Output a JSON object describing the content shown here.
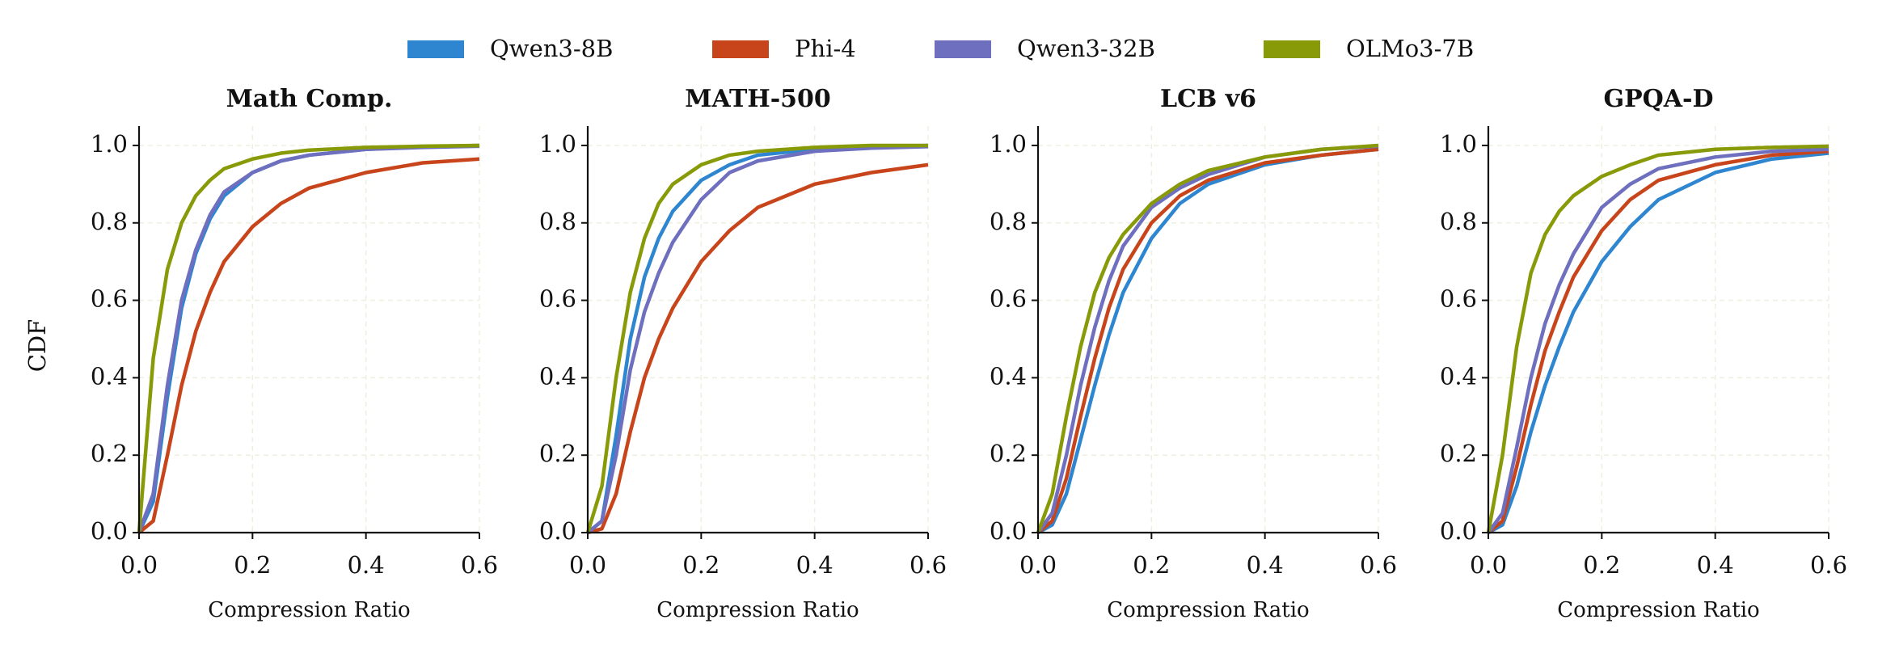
{
  "chart_data": [
    {
      "type": "line",
      "title": "Math Comp.",
      "xlabel": "Compression Ratio",
      "ylabel": "CDF",
      "legend": "top-center",
      "grid": true,
      "xlim": [
        0,
        0.6
      ],
      "ylim": [
        0,
        1.05
      ],
      "xticks": [
        {
          "value": 0,
          "label": "0.0"
        },
        0.2,
        0.4,
        0.6
      ],
      "yticks": [
        {
          "value": 0,
          "label": "0.0"
        },
        0.2,
        0.4,
        0.6,
        0.8,
        {
          "value": 1,
          "label": "1.0"
        }
      ],
      "x": [
        0,
        0.025,
        0.05,
        0.075,
        0.1,
        0.125,
        0.15,
        0.2,
        0.25,
        0.3,
        0.4,
        0.5,
        0.6
      ],
      "series": [
        {
          "name": "Qwen3-8B",
          "color": "#2e86d0",
          "values": [
            0,
            0.08,
            0.35,
            0.58,
            0.72,
            0.81,
            0.87,
            0.93,
            0.96,
            0.975,
            0.99,
            0.997,
            1.0
          ]
        },
        {
          "name": "Phi-4",
          "color": "#c8451c",
          "values": [
            0,
            0.03,
            0.2,
            0.38,
            0.52,
            0.62,
            0.7,
            0.79,
            0.85,
            0.89,
            0.93,
            0.955,
            0.965
          ]
        },
        {
          "name": "Qwen3-32B",
          "color": "#6f6fbf",
          "values": [
            0,
            0.1,
            0.38,
            0.6,
            0.73,
            0.82,
            0.88,
            0.93,
            0.96,
            0.975,
            0.99,
            0.995,
            0.998
          ]
        },
        {
          "name": "OLMo3-7B",
          "color": "#889a08",
          "values": [
            0,
            0.45,
            0.68,
            0.8,
            0.87,
            0.91,
            0.94,
            0.965,
            0.98,
            0.988,
            0.995,
            0.998,
            1.0
          ]
        }
      ]
    },
    {
      "type": "line",
      "title": "MATH-500",
      "xlabel": "Compression Ratio",
      "grid": true,
      "xlim": [
        0,
        0.6
      ],
      "ylim": [
        0,
        1.05
      ],
      "xticks": [
        {
          "value": 0,
          "label": "0.0"
        },
        0.2,
        0.4,
        0.6
      ],
      "yticks": [
        {
          "value": 0,
          "label": "0.0"
        },
        0.2,
        0.4,
        0.6,
        0.8,
        {
          "value": 1,
          "label": "1.0"
        }
      ],
      "x": [
        0,
        0.025,
        0.05,
        0.075,
        0.1,
        0.125,
        0.15,
        0.2,
        0.25,
        0.3,
        0.4,
        0.5,
        0.6
      ],
      "series": [
        {
          "name": "Qwen3-8B",
          "color": "#2e86d0",
          "values": [
            0,
            0.03,
            0.25,
            0.5,
            0.66,
            0.76,
            0.83,
            0.91,
            0.95,
            0.975,
            0.99,
            0.995,
            1.0
          ]
        },
        {
          "name": "Phi-4",
          "color": "#c8451c",
          "values": [
            0,
            0.01,
            0.1,
            0.26,
            0.4,
            0.5,
            0.58,
            0.7,
            0.78,
            0.84,
            0.9,
            0.93,
            0.95
          ]
        },
        {
          "name": "Qwen3-32B",
          "color": "#6f6fbf",
          "values": [
            0,
            0.03,
            0.2,
            0.42,
            0.57,
            0.67,
            0.75,
            0.86,
            0.93,
            0.96,
            0.985,
            0.993,
            0.997
          ]
        },
        {
          "name": "OLMo3-7B",
          "color": "#889a08",
          "values": [
            0,
            0.12,
            0.4,
            0.62,
            0.76,
            0.85,
            0.9,
            0.95,
            0.975,
            0.985,
            0.995,
            1.0,
            1.0
          ]
        }
      ]
    },
    {
      "type": "line",
      "title": "LCB v6",
      "xlabel": "Compression Ratio",
      "grid": true,
      "xlim": [
        0,
        0.6
      ],
      "ylim": [
        0,
        1.05
      ],
      "xticks": [
        {
          "value": 0,
          "label": "0.0"
        },
        0.2,
        0.4,
        0.6
      ],
      "yticks": [
        {
          "value": 0,
          "label": "0.0"
        },
        0.2,
        0.4,
        0.6,
        0.8,
        {
          "value": 1,
          "label": "1.0"
        }
      ],
      "x": [
        0,
        0.025,
        0.05,
        0.075,
        0.1,
        0.125,
        0.15,
        0.2,
        0.25,
        0.3,
        0.4,
        0.5,
        0.6
      ],
      "series": [
        {
          "name": "Qwen3-8B",
          "color": "#2e86d0",
          "values": [
            0,
            0.02,
            0.1,
            0.24,
            0.38,
            0.51,
            0.62,
            0.76,
            0.85,
            0.9,
            0.95,
            0.975,
            0.99
          ]
        },
        {
          "name": "Phi-4",
          "color": "#c8451c",
          "values": [
            0,
            0.03,
            0.14,
            0.3,
            0.45,
            0.58,
            0.68,
            0.8,
            0.87,
            0.91,
            0.955,
            0.975,
            0.99
          ]
        },
        {
          "name": "Qwen3-32B",
          "color": "#6f6fbf",
          "values": [
            0,
            0.05,
            0.2,
            0.38,
            0.53,
            0.65,
            0.74,
            0.84,
            0.89,
            0.925,
            0.97,
            0.99,
            0.998
          ]
        },
        {
          "name": "OLMo3-7B",
          "color": "#889a08",
          "values": [
            0,
            0.1,
            0.3,
            0.48,
            0.62,
            0.71,
            0.77,
            0.85,
            0.9,
            0.935,
            0.97,
            0.99,
            1.0
          ]
        }
      ]
    },
    {
      "type": "line",
      "title": "GPQA-D",
      "xlabel": "Compression Ratio",
      "grid": true,
      "xlim": [
        0,
        0.6
      ],
      "ylim": [
        0,
        1.05
      ],
      "xticks": [
        {
          "value": 0,
          "label": "0.0"
        },
        0.2,
        0.4,
        0.6
      ],
      "yticks": [
        {
          "value": 0,
          "label": "0.0"
        },
        0.2,
        0.4,
        0.6,
        0.8,
        {
          "value": 1,
          "label": "1.0"
        }
      ],
      "x": [
        0,
        0.025,
        0.05,
        0.075,
        0.1,
        0.125,
        0.15,
        0.2,
        0.25,
        0.3,
        0.4,
        0.5,
        0.6
      ],
      "series": [
        {
          "name": "Qwen3-8B",
          "color": "#2e86d0",
          "values": [
            0,
            0.02,
            0.12,
            0.26,
            0.38,
            0.48,
            0.57,
            0.7,
            0.79,
            0.86,
            0.93,
            0.965,
            0.98
          ]
        },
        {
          "name": "Phi-4",
          "color": "#c8451c",
          "values": [
            0,
            0.03,
            0.17,
            0.33,
            0.47,
            0.57,
            0.66,
            0.78,
            0.86,
            0.91,
            0.95,
            0.975,
            0.985
          ]
        },
        {
          "name": "Qwen3-32B",
          "color": "#6f6fbf",
          "values": [
            0,
            0.05,
            0.22,
            0.4,
            0.54,
            0.64,
            0.72,
            0.84,
            0.9,
            0.94,
            0.97,
            0.985,
            0.99
          ]
        },
        {
          "name": "OLMo3-7B",
          "color": "#889a08",
          "values": [
            0,
            0.2,
            0.48,
            0.67,
            0.77,
            0.83,
            0.87,
            0.92,
            0.95,
            0.975,
            0.99,
            0.995,
            0.998
          ]
        }
      ]
    }
  ]
}
